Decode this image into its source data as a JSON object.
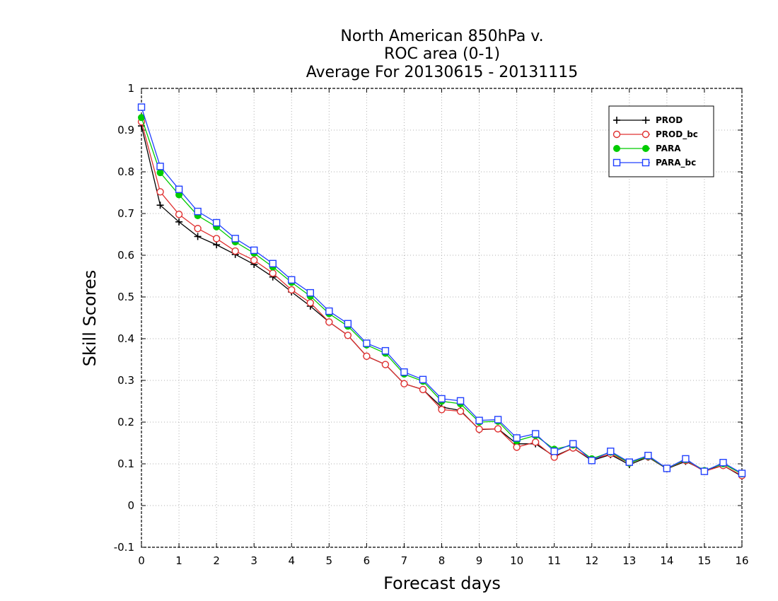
{
  "chart_data": {
    "type": "line",
    "title_lines": [
      "North American 850hPa v.",
      "ROC area (0-1)",
      "Average For 20130615 - 20131115"
    ],
    "xlabel": "Forecast days",
    "ylabel": "Skill Scores",
    "xlim": [
      0,
      16
    ],
    "ylim": [
      -0.1,
      1
    ],
    "x_ticks": [
      "0",
      "1",
      "2",
      "3",
      "4",
      "5",
      "6",
      "7",
      "8",
      "9",
      "10",
      "11",
      "12",
      "13",
      "14",
      "15",
      "16"
    ],
    "y_ticks": [
      "-0.1",
      "0",
      "0.1",
      "0.2",
      "0.3",
      "0.4",
      "0.5",
      "0.6",
      "0.7",
      "0.8",
      "0.9",
      "1"
    ],
    "grid": true,
    "legend_position": "top-right",
    "x": [
      0,
      0.5,
      1,
      1.5,
      2,
      2.5,
      3,
      3.5,
      4,
      4.5,
      5,
      5.5,
      6,
      6.5,
      7,
      7.5,
      8,
      8.5,
      9,
      9.5,
      10,
      10.5,
      11,
      11.5,
      12,
      12.5,
      13,
      13.5,
      14,
      14.5,
      15,
      15.5,
      16
    ],
    "series": [
      {
        "name": "PROD",
        "color": "#000000",
        "marker": "plus",
        "values": [
          0.91,
          0.72,
          0.68,
          0.645,
          0.625,
          0.602,
          0.578,
          0.548,
          0.512,
          0.478,
          0.44,
          0.408,
          0.358,
          0.338,
          0.292,
          0.278,
          0.236,
          0.228,
          0.182,
          0.184,
          0.148,
          0.148,
          0.118,
          0.138,
          0.108,
          0.122,
          0.098,
          0.116,
          0.088,
          0.106,
          0.084,
          0.096,
          0.07
        ]
      },
      {
        "name": "PROD_bc",
        "color": "#e03030",
        "marker": "open-circle",
        "values": [
          0.92,
          0.752,
          0.698,
          0.664,
          0.64,
          0.61,
          0.588,
          0.557,
          0.517,
          0.486,
          0.44,
          0.408,
          0.358,
          0.338,
          0.292,
          0.278,
          0.23,
          0.226,
          0.183,
          0.184,
          0.14,
          0.152,
          0.116,
          0.138,
          0.11,
          0.124,
          0.102,
          0.117,
          0.089,
          0.108,
          0.082,
          0.096,
          0.072
        ]
      },
      {
        "name": "PARA",
        "color": "#00cc00",
        "marker": "filled-circle",
        "values": [
          0.93,
          0.798,
          0.745,
          0.695,
          0.668,
          0.632,
          0.605,
          0.572,
          0.535,
          0.502,
          0.46,
          0.43,
          0.385,
          0.365,
          0.315,
          0.298,
          0.25,
          0.244,
          0.2,
          0.202,
          0.155,
          0.168,
          0.135,
          0.145,
          0.112,
          0.128,
          0.102,
          0.118,
          0.089,
          0.11,
          0.084,
          0.1,
          0.076
        ]
      },
      {
        "name": "PARA_bc",
        "color": "#2040ff",
        "marker": "open-square",
        "values": [
          0.955,
          0.813,
          0.758,
          0.705,
          0.678,
          0.64,
          0.612,
          0.58,
          0.541,
          0.51,
          0.466,
          0.436,
          0.389,
          0.371,
          0.32,
          0.302,
          0.256,
          0.251,
          0.204,
          0.206,
          0.162,
          0.172,
          0.13,
          0.148,
          0.108,
          0.13,
          0.104,
          0.12,
          0.089,
          0.112,
          0.082,
          0.103,
          0.077
        ]
      }
    ]
  }
}
